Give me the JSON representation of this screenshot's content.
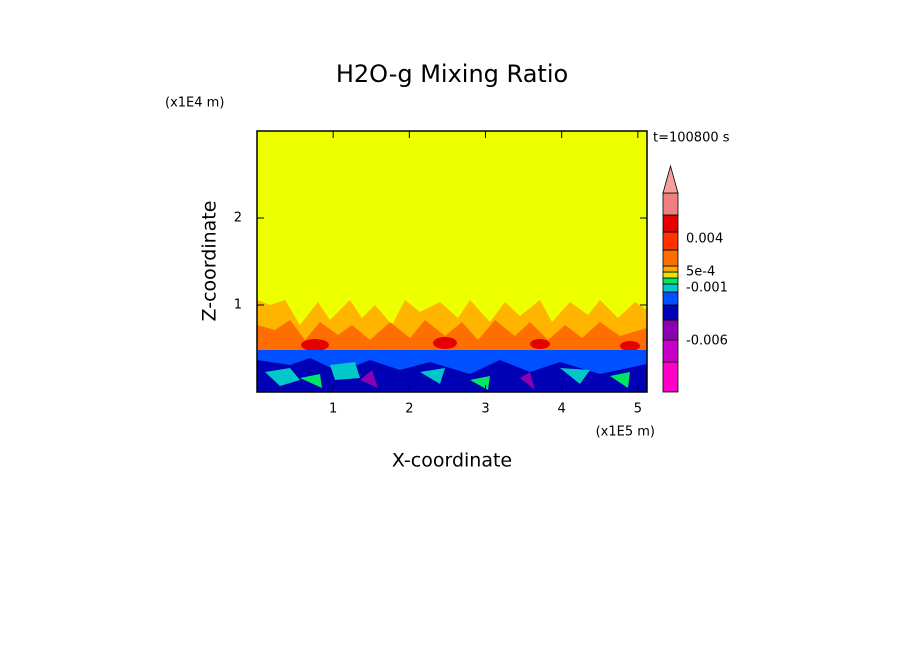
{
  "chart_data": {
    "type": "contour",
    "title": "H2O-g Mixing Ratio",
    "x_label": "X-coordinate",
    "y_label": "Z-coordinate",
    "x_unit": "(x1E5 m)",
    "y_unit": "(x1E4 m)",
    "time_label": "t=100800 s",
    "xlim": [
      0,
      5.12
    ],
    "xticks": [
      1,
      2,
      3,
      4,
      5
    ],
    "ylim": [
      0,
      3
    ],
    "yticks": [
      1,
      2
    ],
    "colorbar": {
      "colors": [
        "#ff00c8",
        "#c800c8",
        "#8c00b4",
        "#0000b4",
        "#0050ff",
        "#00c8c8",
        "#00e664",
        "#e6e600",
        "#ffaa00",
        "#ff6e00",
        "#ff3200",
        "#e60000",
        "#f08080",
        "#f4a0a0"
      ],
      "ticks": [
        0.004,
        {
          "value": 0.0005,
          "label": "5e-4"
        },
        -0.001,
        -0.006
      ]
    }
  }
}
